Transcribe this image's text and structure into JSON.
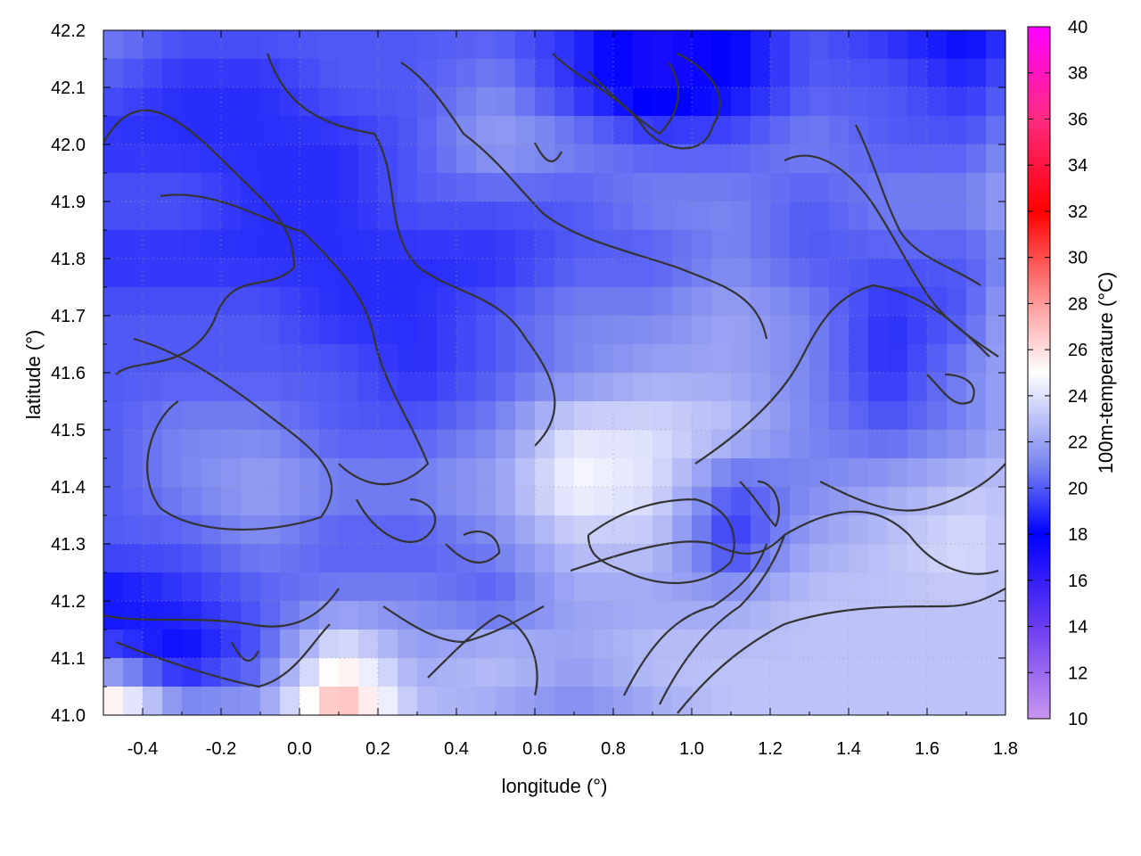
{
  "chart_data": {
    "type": "heatmap",
    "title": "",
    "xlabel": "longitude (°)",
    "ylabel": "latitude (°)",
    "colorbar_label": "100m-temperature (°C)",
    "xlim": [
      -0.5,
      1.8
    ],
    "ylim": [
      41.0,
      42.2
    ],
    "zlim": [
      10,
      40
    ],
    "x_ticks": [
      -0.4,
      -0.2,
      0.0,
      0.2,
      0.4,
      0.6,
      0.8,
      1.0,
      1.2,
      1.4,
      1.6,
      1.8
    ],
    "x_tick_labels": [
      "-0.4",
      "-0.2",
      "0.0",
      "0.2",
      "0.4",
      "0.6",
      "0.8",
      "1.0",
      "1.2",
      "1.4",
      "1.6",
      "1.8"
    ],
    "y_ticks": [
      41.0,
      41.1,
      41.2,
      41.3,
      41.4,
      41.5,
      41.6,
      41.7,
      41.8,
      41.9,
      42.0,
      42.1,
      42.2
    ],
    "y_tick_labels": [
      "41.0",
      "41.1",
      "41.2",
      "41.3",
      "41.4",
      "41.5",
      "41.6",
      "41.7",
      "41.8",
      "41.9",
      "42.0",
      "42.1",
      "42.2"
    ],
    "colorbar_ticks": [
      10,
      12,
      14,
      16,
      18,
      20,
      22,
      24,
      26,
      28,
      30,
      32,
      34,
      36,
      38,
      40
    ],
    "colorbar_tick_labels": [
      "10",
      "12",
      "14",
      "16",
      "18",
      "20",
      "22",
      "24",
      "26",
      "28",
      "30",
      "32",
      "34",
      "36",
      "38",
      "40"
    ],
    "colormap": [
      {
        "value": 10,
        "color": "#c896f0"
      },
      {
        "value": 14,
        "color": "#6a3cf0"
      },
      {
        "value": 18,
        "color": "#0000ff"
      },
      {
        "value": 21,
        "color": "#7a86f0"
      },
      {
        "value": 25,
        "color": "#ffffff"
      },
      {
        "value": 28,
        "color": "#ff9a9a"
      },
      {
        "value": 32,
        "color": "#ff0000"
      },
      {
        "value": 36,
        "color": "#ff2a80"
      },
      {
        "value": 40,
        "color": "#ff00ff"
      }
    ],
    "grid": true,
    "contour_color": "#333333",
    "temperature_field": {
      "lon": [
        -0.5,
        -0.3,
        -0.1,
        0.1,
        0.3,
        0.5,
        0.7,
        0.9,
        1.1,
        1.3,
        1.5,
        1.7,
        1.8
      ],
      "lat": [
        42.2,
        42.1,
        42.0,
        41.9,
        41.8,
        41.7,
        41.6,
        41.5,
        41.4,
        41.3,
        41.2,
        41.1,
        41.0
      ],
      "values": [
        [
          21,
          20,
          20,
          20,
          20,
          20,
          19,
          17,
          18,
          20,
          19,
          18,
          19
        ],
        [
          20,
          19,
          19,
          20,
          20,
          21,
          19,
          17,
          18,
          20,
          20,
          19,
          20
        ],
        [
          19,
          19,
          19,
          19,
          20,
          22,
          21,
          20,
          20,
          21,
          20,
          20,
          21
        ],
        [
          20,
          20,
          19,
          19,
          20,
          20,
          20,
          21,
          21,
          20,
          21,
          21,
          22
        ],
        [
          19,
          19,
          19,
          19,
          19,
          19,
          20,
          20,
          21,
          20,
          20,
          20,
          21
        ],
        [
          20,
          20,
          20,
          19,
          19,
          20,
          21,
          21,
          22,
          21,
          19,
          20,
          22
        ],
        [
          20,
          20,
          20,
          20,
          19,
          20,
          21,
          22,
          22,
          21,
          19,
          21,
          22
        ],
        [
          20,
          21,
          21,
          20,
          20,
          21,
          24,
          24,
          23,
          21,
          20,
          21,
          22
        ],
        [
          20,
          21,
          22,
          21,
          21,
          22,
          25,
          24,
          20,
          21,
          22,
          23,
          23
        ],
        [
          20,
          20,
          21,
          20,
          20,
          21,
          23,
          23,
          19,
          22,
          23,
          24,
          23
        ],
        [
          18,
          19,
          20,
          21,
          21,
          20,
          22,
          22,
          22,
          23,
          23,
          23,
          23
        ],
        [
          20,
          18,
          20,
          25,
          22,
          23,
          22,
          23,
          23,
          23,
          23,
          23,
          23
        ],
        [
          28,
          22,
          22,
          28,
          23,
          22,
          21,
          22,
          23,
          23,
          23,
          23,
          23
        ]
      ]
    }
  }
}
